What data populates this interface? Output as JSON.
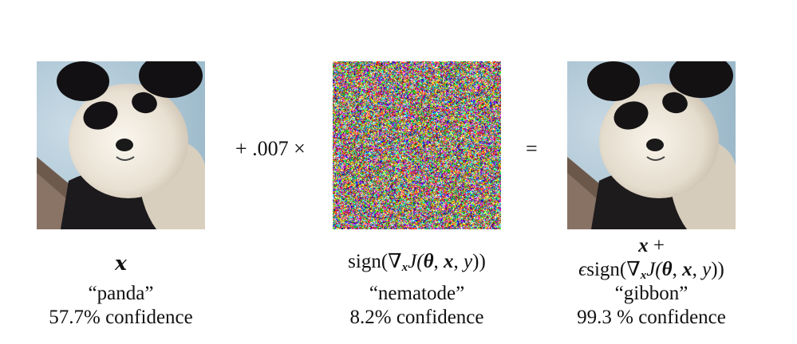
{
  "figure": {
    "operator_plus": "+ .007 ×",
    "operator_equals": "=",
    "panels": [
      {
        "image": "panda-photo",
        "expr_parts": [
          "x"
        ],
        "label": "“panda”",
        "confidence": "57.7% confidence"
      },
      {
        "image": "adversarial-noise",
        "expr_parts": [
          "sign(∇",
          "x",
          "J(",
          "θ",
          ", ",
          "x",
          ", ",
          "y",
          "))"
        ],
        "label": "“nematode”",
        "confidence": "8.2% confidence"
      },
      {
        "image": "panda-photo-perturbed",
        "expr_line1": [
          "x",
          " +"
        ],
        "expr_line2": [
          "ϵ",
          "sign(∇",
          "x",
          "J(",
          "θ",
          ", ",
          "x",
          ", ",
          "y",
          "))"
        ],
        "label": "“gibbon”",
        "confidence": "99.3 % confidence"
      }
    ]
  }
}
